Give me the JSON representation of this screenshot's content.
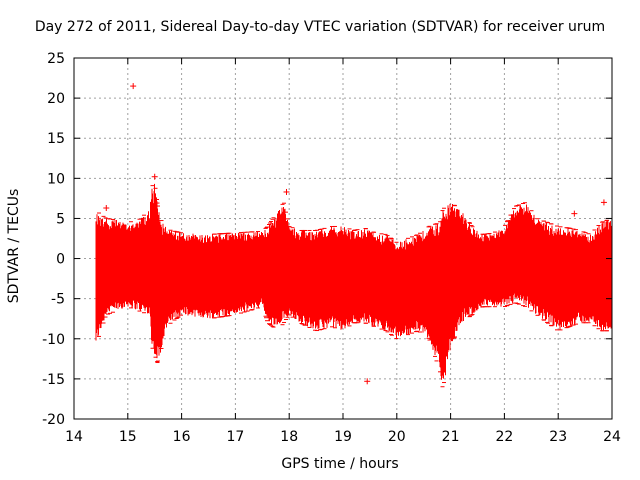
{
  "chart_data": {
    "type": "scatter",
    "title": "Day 272 of 2011, Sidereal Day-to-day VTEC variation (SDTVAR) for receiver urum",
    "xlabel": "GPS time / hours",
    "ylabel": "SDTVAR / TECUs",
    "xlim": [
      14,
      24
    ],
    "ylim": [
      -20,
      25
    ],
    "xticks": [
      "14",
      "15",
      "16",
      "17",
      "18",
      "19",
      "20",
      "21",
      "22",
      "23",
      "24"
    ],
    "yticks": [
      "-20",
      "-15",
      "-10",
      "-5",
      "0",
      "5",
      "10",
      "15",
      "20",
      "25"
    ],
    "grid": true,
    "series_color": "#ff0000",
    "envelope": {
      "x": [
        14.4,
        14.5,
        14.6,
        14.8,
        15.0,
        15.2,
        15.4,
        15.45,
        15.5,
        15.55,
        15.6,
        15.7,
        15.8,
        16.0,
        16.5,
        17.0,
        17.5,
        17.6,
        17.8,
        17.9,
        18.0,
        18.2,
        18.5,
        18.8,
        19.0,
        19.2,
        19.4,
        19.6,
        19.8,
        20.0,
        20.2,
        20.4,
        20.6,
        20.8,
        20.85,
        20.9,
        21.0,
        21.2,
        21.4,
        21.6,
        21.8,
        22.0,
        22.2,
        22.4,
        22.6,
        22.8,
        23.0,
        23.2,
        23.4,
        23.6,
        23.8,
        24.0
      ],
      "max": [
        6,
        5.5,
        5,
        4.8,
        4.5,
        4.8,
        6,
        9,
        9.5,
        7,
        5,
        4,
        3.5,
        3.2,
        3,
        3.2,
        3.4,
        4,
        6,
        7,
        4,
        3.5,
        3.5,
        4,
        4,
        3.5,
        3.8,
        3.2,
        3,
        2,
        2.5,
        3,
        4,
        4.5,
        6,
        6.5,
        7,
        6,
        4,
        3,
        3.2,
        4,
        6.5,
        7,
        5,
        4.5,
        4,
        3.8,
        3.5,
        3,
        4.5,
        5
      ],
      "min": [
        -11,
        -9,
        -7,
        -6.5,
        -6,
        -6.5,
        -7,
        -11,
        -12,
        -13,
        -12,
        -9,
        -8,
        -7,
        -7.5,
        -7,
        -6,
        -8,
        -9,
        -8,
        -7,
        -8,
        -9,
        -8.5,
        -9,
        -8,
        -8,
        -8.5,
        -9,
        -10,
        -9.5,
        -9,
        -10,
        -14,
        -16,
        -15,
        -11,
        -8,
        -7,
        -6,
        -6,
        -6,
        -5.5,
        -6,
        -7,
        -8,
        -9,
        -8.5,
        -8,
        -8,
        -9,
        -9
      ]
    },
    "outliers": [
      {
        "x": 15.1,
        "y": 21.5
      },
      {
        "x": 19.45,
        "y": -15.3
      },
      {
        "x": 14.6,
        "y": 6.3
      },
      {
        "x": 15.5,
        "y": 10.2
      },
      {
        "x": 17.95,
        "y": 8.3
      },
      {
        "x": 23.3,
        "y": 5.6
      },
      {
        "x": 23.85,
        "y": 7.0
      }
    ]
  }
}
